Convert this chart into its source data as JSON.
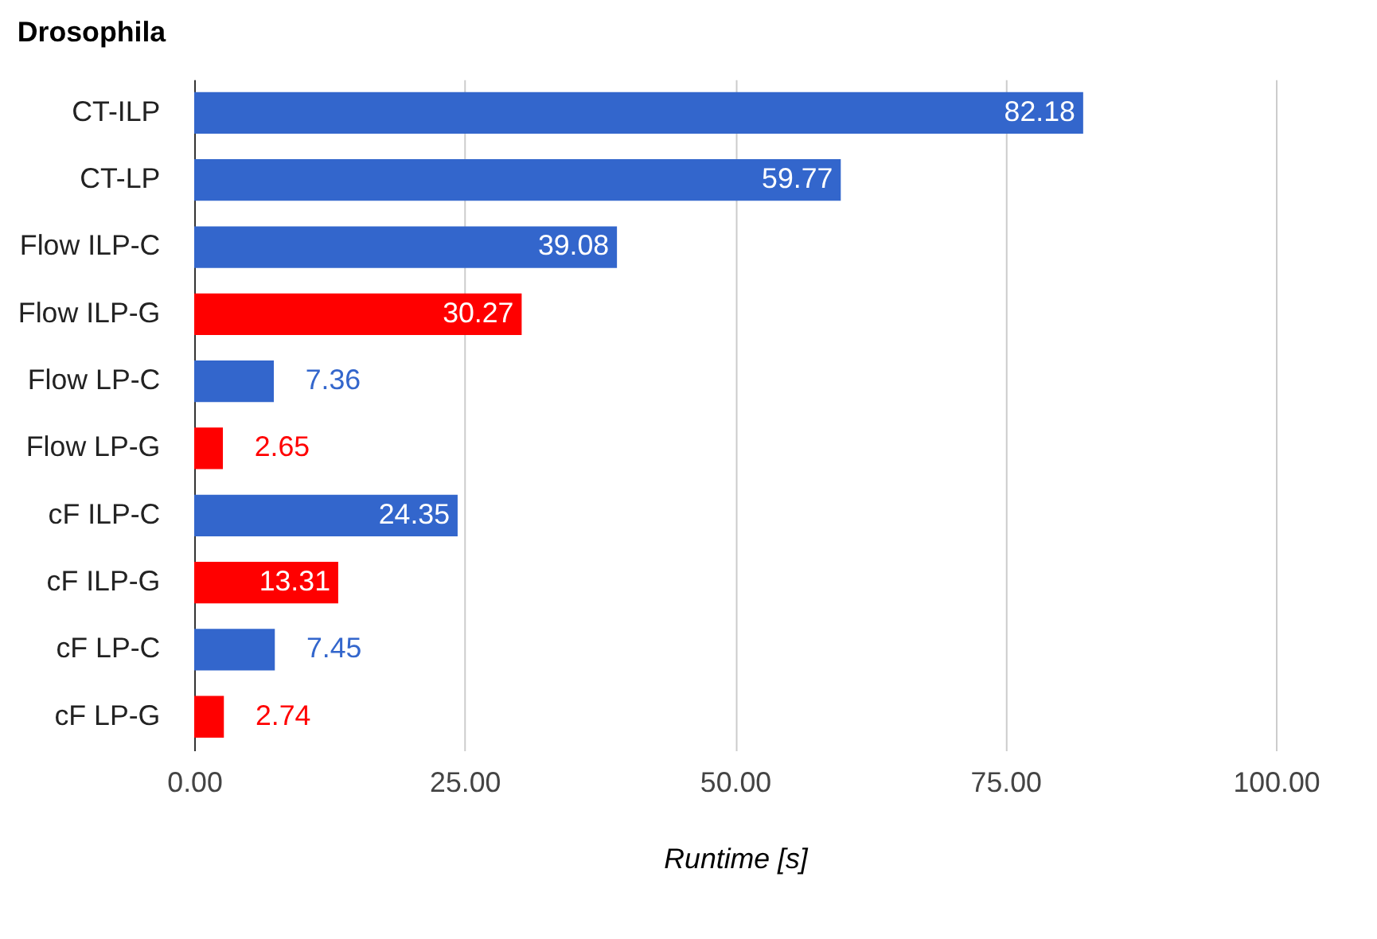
{
  "chart_data": {
    "type": "bar",
    "orientation": "horizontal",
    "title": "Drosophila",
    "xlabel": "Runtime [s]",
    "categories": [
      "CT-ILP",
      "CT-LP",
      "Flow ILP-C",
      "Flow ILP-G",
      "Flow LP-C",
      "Flow LP-G",
      "cF ILP-C",
      "cF ILP-G",
      "cF LP-C",
      "cF LP-G"
    ],
    "values": [
      82.18,
      59.77,
      39.08,
      30.27,
      7.36,
      2.65,
      24.35,
      13.31,
      7.45,
      2.74
    ],
    "colors": [
      "#3366cc",
      "#3366cc",
      "#3366cc",
      "#ff0000",
      "#3366cc",
      "#ff0000",
      "#3366cc",
      "#ff0000",
      "#3366cc",
      "#ff0000"
    ],
    "xlim": [
      0,
      100
    ],
    "xticks": [
      {
        "value": 0,
        "label": "0.00"
      },
      {
        "value": 25,
        "label": "25.00"
      },
      {
        "value": 50,
        "label": "50.00"
      },
      {
        "value": 75,
        "label": "75.00"
      },
      {
        "value": 100,
        "label": "100.00"
      }
    ],
    "grid": "x",
    "data_labels": true
  }
}
